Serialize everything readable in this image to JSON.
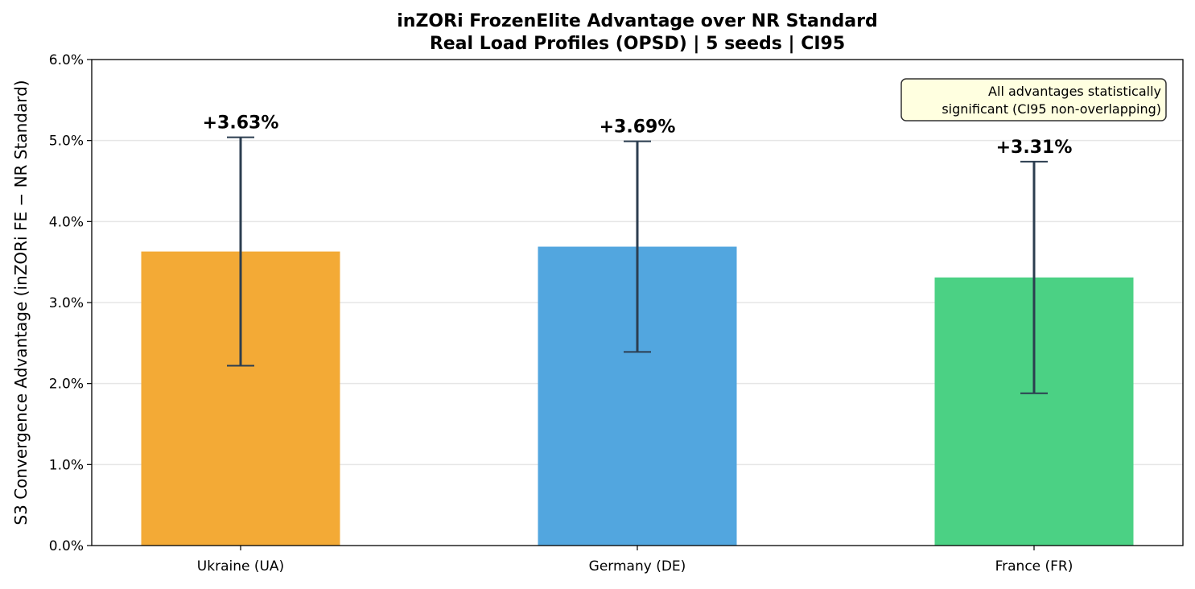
{
  "chart_data": {
    "type": "bar",
    "title": "inZORi FrozenElite Advantage over NR Standard",
    "subtitle": "Real Load Profiles (OPSD) | 5 seeds | CI95",
    "xlabel": "",
    "ylabel": "S3 Convergence Advantage (inZORi FE − NR Standard)",
    "ylim": [
      0,
      6
    ],
    "yticks": [
      0,
      1,
      2,
      3,
      4,
      5,
      6
    ],
    "ytick_labels": [
      "0.0%",
      "1.0%",
      "2.0%",
      "3.0%",
      "4.0%",
      "5.0%",
      "6.0%"
    ],
    "grid": "y",
    "categories": [
      "Ukraine (UA)",
      "Germany (DE)",
      "France (FR)"
    ],
    "values": [
      3.63,
      3.69,
      3.31
    ],
    "ci_low": [
      2.22,
      2.39,
      1.88
    ],
    "ci_high": [
      5.04,
      4.99,
      4.74
    ],
    "data_labels": [
      "+3.63%",
      "+3.69%",
      "+3.31%"
    ],
    "colors": [
      "#f3aa36",
      "#52a6df",
      "#4bd184"
    ],
    "errorbar_color": "#2c3e50",
    "annotation": [
      "All advantages statistically",
      "significant (CI95 non-overlapping)"
    ],
    "annotation_placement": "top-right"
  }
}
